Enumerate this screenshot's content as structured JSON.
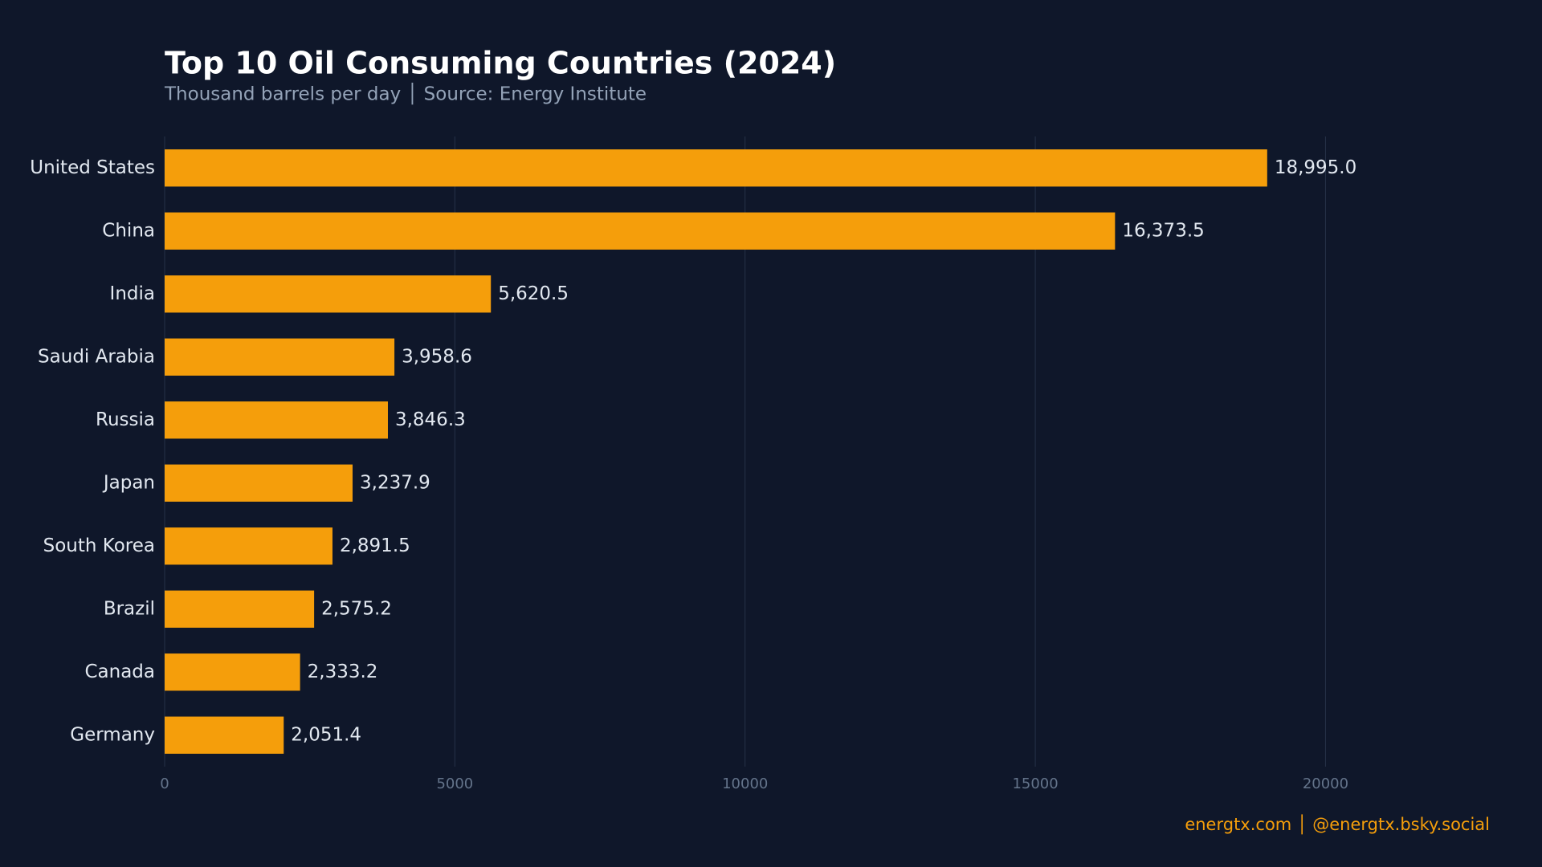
{
  "chart_data": {
    "type": "bar",
    "orientation": "horizontal",
    "title": "Top 10 Oil Consuming Countries (2024)",
    "subtitle": "Thousand barrels per day │ Source: Energy Institute",
    "footer": "energtx.com │ @energtx.bsky.social",
    "categories": [
      "United States",
      "China",
      "India",
      "Saudi Arabia",
      "Russia",
      "Japan",
      "South Korea",
      "Brazil",
      "Canada",
      "Germany"
    ],
    "values": [
      18995.0,
      16373.5,
      5620.5,
      3958.6,
      3846.3,
      3237.9,
      2891.5,
      2575.2,
      2333.2,
      2051.4
    ],
    "value_labels": [
      "18,995.0",
      "16,373.5",
      "5,620.5",
      "3,958.6",
      "3,846.3",
      "3,237.9",
      "2,891.5",
      "2,575.2",
      "2,333.2",
      "2,051.4"
    ],
    "color": "#f59e0b",
    "xlim": [
      0,
      22000
    ],
    "xticks": [
      0,
      5000,
      10000,
      15000,
      20000
    ],
    "grid": true
  }
}
